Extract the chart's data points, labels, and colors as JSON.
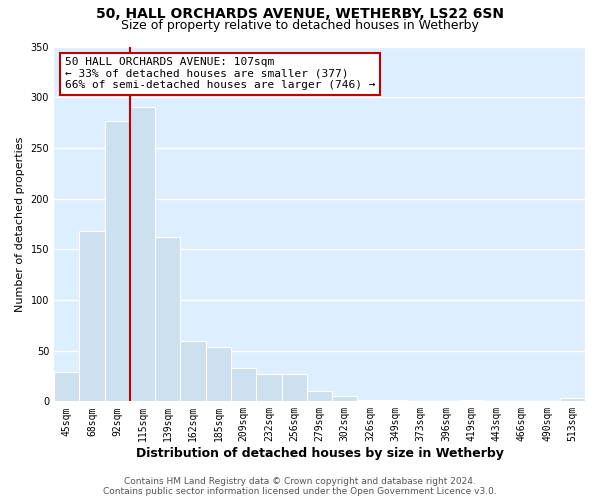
{
  "title": "50, HALL ORCHARDS AVENUE, WETHERBY, LS22 6SN",
  "subtitle": "Size of property relative to detached houses in Wetherby",
  "xlabel": "Distribution of detached houses by size in Wetherby",
  "ylabel": "Number of detached properties",
  "bar_labels": [
    "45sqm",
    "68sqm",
    "92sqm",
    "115sqm",
    "139sqm",
    "162sqm",
    "185sqm",
    "209sqm",
    "232sqm",
    "256sqm",
    "279sqm",
    "302sqm",
    "326sqm",
    "349sqm",
    "373sqm",
    "396sqm",
    "419sqm",
    "443sqm",
    "466sqm",
    "490sqm",
    "513sqm"
  ],
  "bar_values": [
    29,
    168,
    277,
    290,
    162,
    60,
    54,
    33,
    27,
    27,
    10,
    5,
    1,
    1,
    0,
    0,
    1,
    0,
    0,
    0,
    3
  ],
  "bar_color": "#cce0f0",
  "vline_color": "#c00000",
  "vline_x": 3.0,
  "annotation_text": "50 HALL ORCHARDS AVENUE: 107sqm\n← 33% of detached houses are smaller (377)\n66% of semi-detached houses are larger (746) →",
  "annotation_box_color": "#ffffff",
  "annotation_box_edge_color": "#c00000",
  "ylim": [
    0,
    350
  ],
  "yticks": [
    0,
    50,
    100,
    150,
    200,
    250,
    300,
    350
  ],
  "footer_line1": "Contains HM Land Registry data © Crown copyright and database right 2024.",
  "footer_line2": "Contains public sector information licensed under the Open Government Licence v3.0.",
  "bg_color": "#ffffff",
  "plot_bg_color": "#ddeeff",
  "grid_color": "#ffffff",
  "title_fontsize": 10,
  "subtitle_fontsize": 9,
  "xlabel_fontsize": 9,
  "ylabel_fontsize": 8,
  "tick_fontsize": 7,
  "annotation_fontsize": 8,
  "footer_fontsize": 6.5
}
